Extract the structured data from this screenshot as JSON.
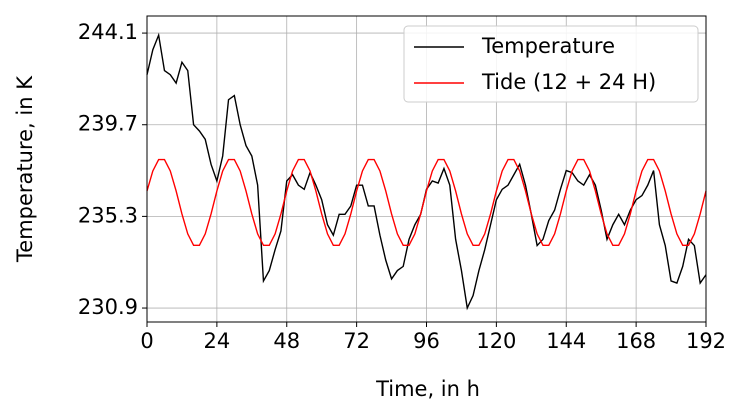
{
  "chart_data": {
    "type": "line",
    "xlabel": "Time, in h",
    "ylabel": "Temperature, in K",
    "x": [
      0,
      2,
      4,
      6,
      8,
      10,
      12,
      14,
      16,
      18,
      20,
      22,
      24,
      26,
      28,
      30,
      32,
      34,
      36,
      38,
      40,
      42,
      44,
      46,
      48,
      50,
      52,
      54,
      56,
      58,
      60,
      62,
      64,
      66,
      68,
      70,
      72,
      74,
      76,
      78,
      80,
      82,
      84,
      86,
      88,
      90,
      92,
      94,
      96,
      98,
      100,
      102,
      104,
      106,
      108,
      110,
      112,
      114,
      116,
      118,
      120,
      122,
      124,
      126,
      128,
      130,
      132,
      134,
      136,
      138,
      140,
      142,
      144,
      146,
      148,
      150,
      152,
      154,
      156,
      158,
      160,
      162,
      164,
      166,
      168,
      170,
      172,
      174,
      176,
      178,
      180,
      182,
      184,
      186,
      188,
      190,
      192
    ],
    "series": [
      {
        "name": "Temperature",
        "color": "#000000",
        "values": [
          242.1,
          243.3,
          244.0,
          242.3,
          242.1,
          241.7,
          242.7,
          242.3,
          239.7,
          239.4,
          239.0,
          237.8,
          237.0,
          238.2,
          240.9,
          241.1,
          239.7,
          238.7,
          238.2,
          236.8,
          232.2,
          232.7,
          233.7,
          234.6,
          237.0,
          237.3,
          236.8,
          236.6,
          237.4,
          236.8,
          236.1,
          234.9,
          234.4,
          235.4,
          235.4,
          235.8,
          236.8,
          236.8,
          235.8,
          235.8,
          234.4,
          233.2,
          232.3,
          232.7,
          232.9,
          234.2,
          234.9,
          235.4,
          236.6,
          237.0,
          236.9,
          237.6,
          236.8,
          234.2,
          232.7,
          230.9,
          231.5,
          232.7,
          233.7,
          234.9,
          236.1,
          236.6,
          236.8,
          237.3,
          237.8,
          236.8,
          235.4,
          233.9,
          234.2,
          235.1,
          235.6,
          236.6,
          237.5,
          237.4,
          237.0,
          236.8,
          237.3,
          236.8,
          235.6,
          234.2,
          234.9,
          235.4,
          234.9,
          235.6,
          236.1,
          236.3,
          236.8,
          237.5,
          234.9,
          233.9,
          232.2,
          232.1,
          232.9,
          234.2,
          233.9,
          232.1,
          232.5
        ]
      },
      {
        "name": "Tide (12 + 24 H)",
        "color": "#ff0000",
        "values": [
          236.52,
          237.48,
          238.03,
          238.03,
          237.48,
          236.52,
          235.42,
          234.46,
          233.91,
          233.91,
          234.46,
          235.42,
          236.52,
          237.48,
          238.03,
          238.03,
          237.48,
          236.52,
          235.42,
          234.46,
          233.91,
          233.91,
          234.46,
          235.42,
          236.52,
          237.48,
          238.03,
          238.03,
          237.48,
          236.52,
          235.42,
          234.46,
          233.91,
          233.91,
          234.46,
          235.42,
          236.52,
          237.48,
          238.03,
          238.03,
          237.48,
          236.52,
          235.42,
          234.46,
          233.91,
          233.91,
          234.46,
          235.42,
          236.52,
          237.48,
          238.03,
          238.03,
          237.48,
          236.52,
          235.42,
          234.46,
          233.91,
          233.91,
          234.46,
          235.42,
          236.52,
          237.48,
          238.03,
          238.03,
          237.48,
          236.52,
          235.42,
          234.46,
          233.91,
          233.91,
          234.46,
          235.42,
          236.52,
          237.48,
          238.03,
          238.03,
          237.48,
          236.52,
          235.42,
          234.46,
          233.91,
          233.91,
          234.46,
          235.42,
          236.52,
          237.48,
          238.03,
          238.03,
          237.48,
          236.52,
          235.42,
          234.46,
          233.91,
          233.91,
          234.46,
          235.42,
          236.52
        ]
      }
    ],
    "xlim": [
      0,
      192
    ],
    "xticks": [
      0,
      24,
      48,
      72,
      96,
      120,
      144,
      168,
      192
    ],
    "ylim": [
      230.23,
      244.92
    ],
    "yticks": [
      230.9,
      235.3,
      239.7,
      244.1
    ],
    "grid": true,
    "legend": "upper right"
  }
}
